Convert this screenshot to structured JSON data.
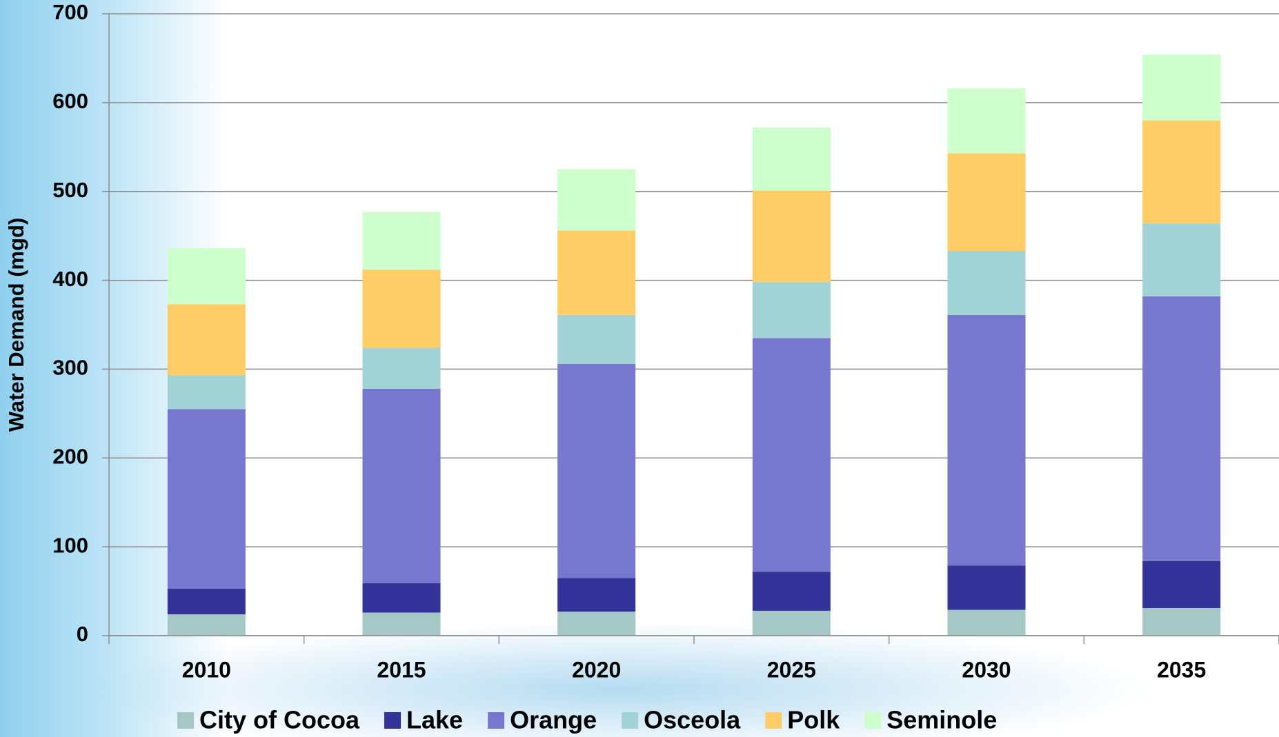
{
  "chart_data": {
    "type": "stacked-bar",
    "y_label": "Water Demand (mgd)",
    "categories": [
      "2010",
      "2015",
      "2020",
      "2025",
      "2030",
      "2035"
    ],
    "series": [
      {
        "name": "City of Cocoa",
        "color": "#a5c8c6",
        "values": [
          24,
          26,
          27,
          28,
          29,
          31
        ]
      },
      {
        "name": "Lake",
        "color": "#333399",
        "values": [
          29,
          33,
          38,
          44,
          50,
          53
        ]
      },
      {
        "name": "Orange",
        "color": "#7777cf",
        "values": [
          202,
          219,
          241,
          263,
          282,
          298
        ]
      },
      {
        "name": "Osceola",
        "color": "#a1d3d6",
        "values": [
          38,
          46,
          55,
          63,
          72,
          82
        ]
      },
      {
        "name": "Polk",
        "color": "#ffcc66",
        "values": [
          80,
          88,
          95,
          103,
          110,
          116
        ]
      },
      {
        "name": "Seminole",
        "color": "#ccffcc",
        "values": [
          63,
          65,
          69,
          71,
          73,
          74
        ]
      }
    ],
    "ylim": [
      0,
      700
    ],
    "yticks": [
      0,
      100,
      200,
      300,
      400,
      500,
      600,
      700
    ],
    "grid": true,
    "legend": "bottom"
  }
}
